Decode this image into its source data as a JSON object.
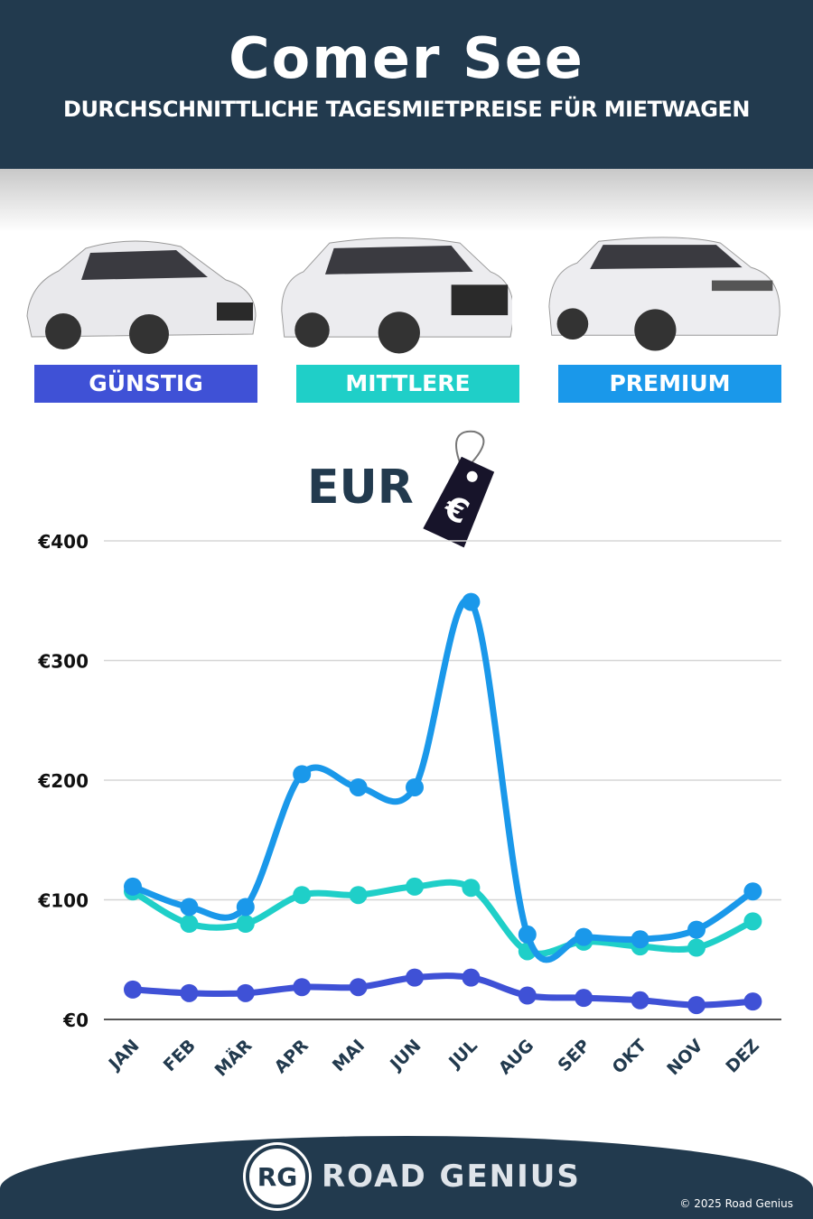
{
  "header": {
    "title": "Comer See",
    "subtitle": "DURCHSCHNITTLICHE TAGESMIETPREISE FÜR MIETWAGEN"
  },
  "categories": [
    {
      "label": "GÜNSTIG",
      "color": "#3f51d6"
    },
    {
      "label": "MITTLERE",
      "color": "#1fcfc8"
    },
    {
      "label": "PREMIUM",
      "color": "#1a98ea"
    }
  ],
  "currency_label": "EUR",
  "price_tag_icon": "euro-price-tag",
  "chart_data": {
    "type": "line",
    "categories": [
      "JAN",
      "FEB",
      "MÄR",
      "APR",
      "MAI",
      "JUN",
      "JUL",
      "AUG",
      "SEP",
      "OKT",
      "NOV",
      "DEZ"
    ],
    "ylim": [
      0,
      400
    ],
    "yticks": [
      "€0",
      "€100",
      "€200",
      "€300",
      "€400"
    ],
    "ytick_values": [
      0,
      100,
      200,
      300,
      400
    ],
    "grid": true,
    "series": [
      {
        "name": "GÜNSTIG",
        "color": "#3f51d6",
        "values": [
          25,
          22,
          22,
          27,
          27,
          35,
          35,
          20,
          18,
          16,
          12,
          15
        ]
      },
      {
        "name": "MITTLERE",
        "color": "#1fcfc8",
        "values": [
          107,
          80,
          80,
          104,
          104,
          111,
          110,
          57,
          65,
          61,
          60,
          82
        ]
      },
      {
        "name": "PREMIUM",
        "color": "#1a98ea",
        "values": [
          111,
          94,
          94,
          205,
          194,
          194,
          349,
          71,
          69,
          67,
          75,
          107
        ]
      }
    ]
  },
  "footer": {
    "logo": "RG",
    "brand": "ROAD GENIUS",
    "copyright": "© 2025 Road Genius"
  }
}
